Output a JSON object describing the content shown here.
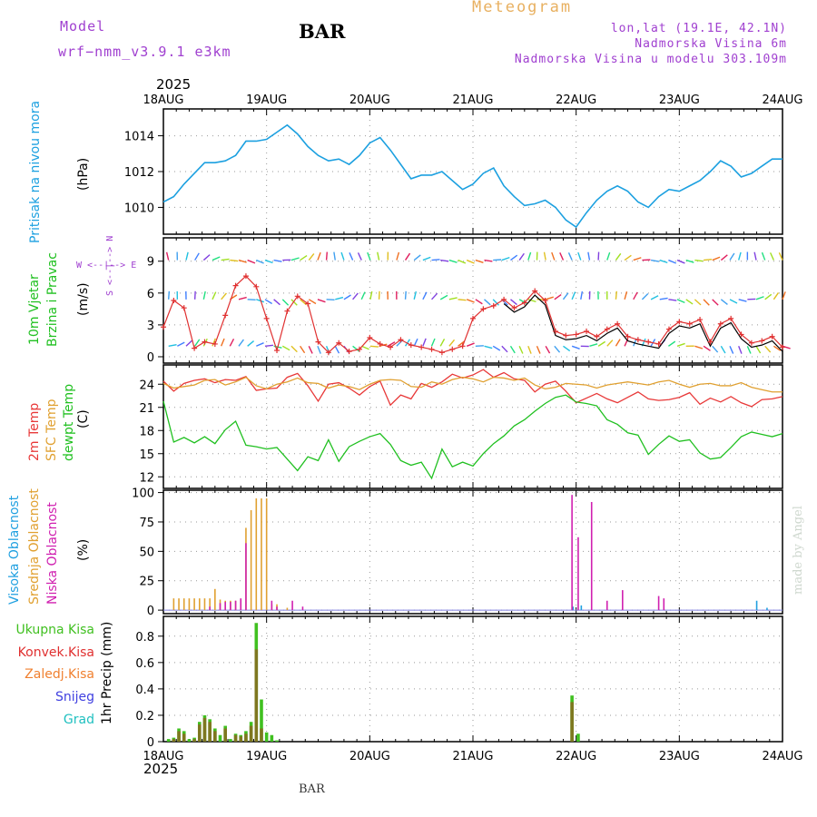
{
  "header": {
    "model_label": "Model",
    "model_name": "wrf−nmm_v3.9.1  e3km",
    "station": "BAR",
    "meteogram_label": "Meteogram",
    "coords": "lon,lat (19.1E, 42.1N)",
    "elevation": "Nadmorska Visina 6m",
    "model_elevation": "Nadmorska Visina u modelu 303.109m",
    "year_top": "2025",
    "year_bottom": "2025",
    "footer_station": "BAR",
    "credit": "made by Angel"
  },
  "colors": {
    "pressure": "#1ca0e0",
    "wind_speed_obs": "#e03030",
    "wind_line": "#000000",
    "temp2m": "#e83838",
    "sfc_temp": "#e0a030",
    "dewpt": "#20c020",
    "high_cloud": "#20a0e0",
    "mid_cloud": "#e0a030",
    "low_cloud": "#d020b0",
    "total_precip": "#40c020",
    "conv_precip": "#e03030",
    "frozen_precip": "#f08030",
    "snow": "#4040e0",
    "hail": "#20c0c0"
  },
  "chart_data": [
    {
      "type": "line",
      "panel": "pressure",
      "ylabel_main": "Pritisak na nivou mora",
      "ylabel_unit": "(hPa)",
      "x_categories": [
        "18AUG",
        "19AUG",
        "20AUG",
        "21AUG",
        "22AUG",
        "23AUG",
        "24AUG"
      ],
      "ylim": [
        1008.5,
        1015.5
      ],
      "yticks": [
        1010,
        1012,
        1014
      ],
      "x": [
        0,
        0.1,
        0.2,
        0.3,
        0.4,
        0.5,
        0.6,
        0.7,
        0.8,
        0.9,
        1.0,
        1.1,
        1.2,
        1.3,
        1.4,
        1.5,
        1.6,
        1.7,
        1.8,
        1.9,
        2.0,
        2.1,
        2.2,
        2.3,
        2.4,
        2.5,
        2.6,
        2.7,
        2.8,
        2.9,
        3.0,
        3.1,
        3.2,
        3.3,
        3.4,
        3.5,
        3.6,
        3.7,
        3.8,
        3.9,
        4.0,
        4.1,
        4.2,
        4.3,
        4.4,
        4.5,
        4.6,
        4.7,
        4.8,
        4.9,
        5.0,
        5.1,
        5.2,
        5.3,
        5.4,
        5.5,
        5.6,
        5.7,
        5.8,
        5.9,
        6.0
      ],
      "values": [
        1010.3,
        1010.6,
        1011.3,
        1011.9,
        1012.5,
        1012.5,
        1012.6,
        1012.9,
        1013.7,
        1013.7,
        1013.8,
        1014.2,
        1014.6,
        1014.1,
        1013.4,
        1012.9,
        1012.6,
        1012.7,
        1012.4,
        1012.9,
        1013.6,
        1013.9,
        1013.2,
        1012.4,
        1011.6,
        1011.8,
        1011.8,
        1012.0,
        1011.5,
        1011.0,
        1011.3,
        1011.9,
        1012.2,
        1011.2,
        1010.6,
        1010.1,
        1010.2,
        1010.4,
        1010.0,
        1009.3,
        1008.9,
        1009.7,
        1010.4,
        1010.9,
        1011.2,
        1010.9,
        1010.3,
        1010.0,
        1010.6,
        1011.0,
        1010.9,
        1011.2,
        1011.5,
        1012.0,
        1012.6,
        1012.3,
        1011.7,
        1011.9,
        1012.3,
        1012.7,
        1012.7
      ]
    },
    {
      "type": "line",
      "panel": "wind",
      "ylabel_main": "10m Vjetar",
      "ylabel_sub": "Brzina i Pravac",
      "ylabel_unit": "(m/s)",
      "compass": "W <--|--> E",
      "compass_vert": "S <--|--> N",
      "ylim": [
        -0.6,
        11.2
      ],
      "yticks": [
        0,
        3,
        6,
        9
      ],
      "x": [
        0,
        0.1,
        0.2,
        0.3,
        0.4,
        0.5,
        0.6,
        0.7,
        0.8,
        0.9,
        1.0,
        1.1,
        1.2,
        1.3,
        1.4,
        1.5,
        1.6,
        1.7,
        1.8,
        1.9,
        2.0,
        2.1,
        2.2,
        2.3,
        2.4,
        2.5,
        2.6,
        2.7,
        2.8,
        2.9,
        3.0,
        3.1,
        3.2,
        3.3,
        3.4,
        3.5,
        3.6,
        3.7,
        3.8,
        3.9,
        4.0,
        4.1,
        4.2,
        4.3,
        4.4,
        4.5,
        4.6,
        4.7,
        4.8,
        4.9,
        5.0,
        5.1,
        5.2,
        5.3,
        5.4,
        5.5,
        5.6,
        5.7,
        5.8,
        5.9,
        6.0
      ],
      "values": [
        2.8,
        5.3,
        4.6,
        0.8,
        1.4,
        1.2,
        3.9,
        6.7,
        7.6,
        6.6,
        3.6,
        0.6,
        4.3,
        5.7,
        5.0,
        1.4,
        0.4,
        1.3,
        0.5,
        0.7,
        1.8,
        1.2,
        0.9,
        1.6,
        1.1,
        0.9,
        0.7,
        0.4,
        0.7,
        1.0,
        3.6,
        4.5,
        4.8,
        5.4,
        4.6,
        5.1,
        6.2,
        5.3,
        2.4,
        2.0,
        2.1,
        2.4,
        1.9,
        2.6,
        3.1,
        1.9,
        1.6,
        1.4,
        1.2,
        2.6,
        3.3,
        3.1,
        3.5,
        1.4,
        3.1,
        3.6,
        2.1,
        1.3,
        1.5,
        1.9,
        0.9
      ]
    },
    {
      "type": "line",
      "panel": "temperature",
      "series_labels": [
        "2m Temp",
        "SFC Temp",
        "dewpt Temp"
      ],
      "ylabel_unit": "(C)",
      "ylim": [
        10.5,
        26.5
      ],
      "yticks": [
        12,
        15,
        18,
        21,
        24
      ],
      "x": [
        0,
        0.1,
        0.2,
        0.3,
        0.4,
        0.5,
        0.6,
        0.7,
        0.8,
        0.9,
        1.0,
        1.1,
        1.2,
        1.3,
        1.4,
        1.5,
        1.6,
        1.7,
        1.8,
        1.9,
        2.0,
        2.1,
        2.2,
        2.3,
        2.4,
        2.5,
        2.6,
        2.7,
        2.8,
        2.9,
        3.0,
        3.1,
        3.2,
        3.3,
        3.4,
        3.5,
        3.6,
        3.7,
        3.8,
        3.9,
        4.0,
        4.1,
        4.2,
        4.3,
        4.4,
        4.5,
        4.6,
        4.7,
        4.8,
        4.9,
        5.0,
        5.1,
        5.2,
        5.3,
        5.4,
        5.5,
        5.6,
        5.7,
        5.8,
        5.9,
        6.0
      ],
      "series": [
        {
          "name": "2m Temp",
          "values": [
            24.4,
            23.1,
            24.1,
            24.5,
            24.7,
            24.2,
            24.6,
            24.5,
            25.0,
            23.2,
            23.4,
            23.5,
            24.9,
            25.4,
            23.8,
            21.8,
            24.0,
            24.2,
            23.5,
            22.6,
            23.7,
            24.4,
            21.3,
            22.6,
            22.1,
            24.1,
            23.6,
            24.3,
            25.3,
            24.8,
            25.2,
            25.9,
            24.9,
            25.5,
            24.7,
            24.5,
            23.0,
            24.0,
            24.4,
            23.1,
            21.6,
            22.2,
            22.8,
            22.1,
            21.6,
            22.3,
            23.0,
            22.1,
            21.9,
            22.0,
            22.3,
            22.9,
            21.4,
            22.2,
            21.7,
            22.4,
            21.6,
            21.1,
            22.0,
            22.1,
            22.4
          ]
        },
        {
          "name": "SFC Temp",
          "values": [
            24.1,
            23.5,
            23.7,
            23.9,
            24.5,
            24.6,
            23.9,
            24.3,
            24.9,
            23.8,
            23.4,
            24.0,
            24.3,
            24.8,
            24.2,
            24.1,
            23.5,
            23.9,
            23.7,
            23.3,
            24.0,
            24.5,
            24.6,
            24.5,
            23.7,
            23.6,
            24.3,
            24.0,
            24.6,
            24.9,
            24.7,
            24.3,
            24.9,
            24.8,
            24.5,
            24.8,
            23.9,
            23.4,
            23.6,
            24.1,
            24.0,
            23.9,
            23.5,
            23.9,
            24.1,
            24.3,
            24.1,
            23.9,
            24.3,
            24.5,
            24.0,
            23.6,
            24.0,
            24.1,
            23.8,
            23.8,
            24.2,
            23.6,
            23.3,
            23.0,
            23.0
          ]
        },
        {
          "name": "dewpt Temp",
          "values": [
            21.8,
            16.5,
            17.1,
            16.4,
            17.2,
            16.3,
            18.1,
            19.2,
            16.1,
            15.9,
            15.6,
            15.8,
            14.3,
            12.8,
            14.6,
            14.1,
            16.8,
            14.0,
            15.9,
            16.6,
            17.2,
            17.6,
            16.2,
            14.1,
            13.5,
            13.9,
            11.8,
            15.6,
            13.3,
            13.9,
            13.4,
            15.0,
            16.3,
            17.3,
            18.6,
            19.4,
            20.5,
            21.5,
            22.3,
            22.6,
            21.7,
            21.5,
            21.2,
            19.4,
            18.8,
            17.7,
            17.4,
            14.9,
            16.2,
            17.3,
            16.6,
            16.8,
            15.1,
            14.3,
            14.5,
            15.8,
            17.2,
            17.8,
            17.5,
            17.2,
            17.6
          ]
        }
      ]
    },
    {
      "type": "bar",
      "panel": "clouds",
      "series_labels": [
        "Visoka Oblacnost",
        "Srednja Oblacnost",
        "Niska Oblacnost"
      ],
      "ylabel_unit": "(%)",
      "ylim": [
        -3,
        102
      ],
      "yticks": [
        0,
        25,
        50,
        75,
        100
      ],
      "series": [
        {
          "name": "Visoka Oblacnost",
          "x": [
            3.97,
            4.05,
            5.75,
            5.85
          ],
          "values": [
            3,
            4,
            8,
            2
          ]
        },
        {
          "name": "Srednja Oblacnost",
          "x": [
            0.1,
            0.15,
            0.2,
            0.25,
            0.3,
            0.35,
            0.4,
            0.45,
            0.5,
            0.55,
            0.6,
            0.65,
            0.7,
            0.75,
            0.8,
            0.85,
            0.9,
            0.95,
            1.0,
            1.05,
            1.1,
            1.2
          ],
          "values": [
            10,
            10,
            10,
            10,
            10,
            10,
            10,
            10,
            18,
            9,
            8,
            8,
            8,
            9,
            70,
            85,
            95,
            95,
            95,
            5,
            5,
            2
          ]
        },
        {
          "name": "Niska Oblacnost",
          "x": [
            0.45,
            0.55,
            0.6,
            0.65,
            0.7,
            0.75,
            0.8,
            1.05,
            1.1,
            1.25,
            1.35,
            3.96,
            4.02,
            4.15,
            4.3,
            4.45,
            4.8,
            4.85
          ],
          "values": [
            3,
            6,
            7,
            7,
            8,
            10,
            57,
            8,
            3,
            8,
            3,
            98,
            62,
            92,
            8,
            17,
            12,
            10
          ]
        }
      ]
    },
    {
      "type": "bar",
      "panel": "precipitation",
      "series_labels": [
        "Ukupna Kisa",
        "Konvek.Kisa",
        "Zaledj.Kisa",
        "Snijeg",
        "Grad"
      ],
      "ylabel_unit": "1hr Precip (mm)",
      "ylim": [
        0,
        0.95
      ],
      "yticks": [
        0,
        0.2,
        0.4,
        0.6,
        0.8
      ],
      "series": [
        {
          "name": "Ukupna Kisa",
          "x": [
            0.05,
            0.1,
            0.15,
            0.2,
            0.25,
            0.3,
            0.35,
            0.4,
            0.45,
            0.5,
            0.55,
            0.6,
            0.65,
            0.7,
            0.75,
            0.8,
            0.85,
            0.9,
            0.95,
            1.0,
            1.05,
            1.1,
            3.96,
            4.02
          ],
          "values": [
            0.02,
            0.03,
            0.1,
            0.08,
            0.02,
            0.03,
            0.15,
            0.2,
            0.17,
            0.1,
            0.05,
            0.12,
            0.02,
            0.06,
            0.05,
            0.08,
            0.15,
            0.9,
            0.32,
            0.07,
            0.05,
            0.01,
            0.35,
            0.06
          ]
        },
        {
          "name": "Konvek.Kisa",
          "x": [
            0.1,
            0.15,
            0.2,
            0.3,
            0.35,
            0.4,
            0.45,
            0.5,
            0.6,
            0.7,
            0.75,
            0.8,
            0.85,
            0.9,
            0.95,
            3.96
          ],
          "values": [
            0.02,
            0.08,
            0.06,
            0.02,
            0.13,
            0.18,
            0.15,
            0.08,
            0.1,
            0.05,
            0.04,
            0.06,
            0.12,
            0.7,
            0.1,
            0.3
          ]
        }
      ]
    }
  ]
}
